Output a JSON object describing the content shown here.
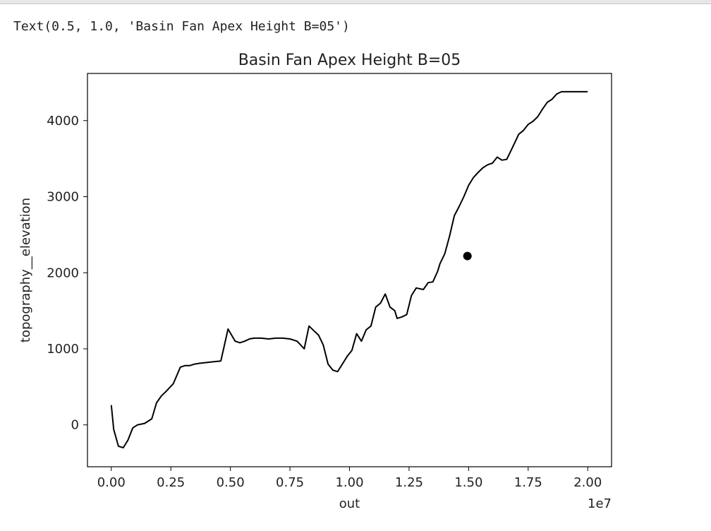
{
  "output_text": "Text(0.5, 1.0, 'Basin Fan Apex Height B=05')",
  "chart_data": {
    "type": "line",
    "title": "Basin Fan Apex Height B=05",
    "xlabel": "out",
    "ylabel": "topography__elevation",
    "x_offset_label": "1e7",
    "xlim": [
      -0.1,
      2.1
    ],
    "ylim": [
      -550,
      4620
    ],
    "x_ticks": [
      0.0,
      0.25,
      0.5,
      0.75,
      1.0,
      1.25,
      1.5,
      1.75,
      2.0
    ],
    "x_tick_labels": [
      "0.00",
      "0.25",
      "0.50",
      "0.75",
      "1.00",
      "1.25",
      "1.50",
      "1.75",
      "2.00"
    ],
    "y_ticks": [
      0,
      1000,
      2000,
      3000,
      4000
    ],
    "y_tick_labels": [
      "0",
      "1000",
      "2000",
      "3000",
      "4000"
    ],
    "grid": false,
    "line_color": "#000000",
    "series": [
      {
        "x": [
          0.0,
          0.01,
          0.03,
          0.05,
          0.07,
          0.09,
          0.11,
          0.14,
          0.17,
          0.19,
          0.21,
          0.23,
          0.26,
          0.29,
          0.31,
          0.33,
          0.35,
          0.37,
          0.4,
          0.43,
          0.46,
          0.49,
          0.52,
          0.54,
          0.56,
          0.58,
          0.6,
          0.63,
          0.66,
          0.69,
          0.72,
          0.75,
          0.78,
          0.81,
          0.83,
          0.85,
          0.87,
          0.89,
          0.91,
          0.93,
          0.95,
          0.97,
          0.99,
          1.01,
          1.03,
          1.05,
          1.07,
          1.09,
          1.11,
          1.13,
          1.15,
          1.17,
          1.19,
          1.2,
          1.22,
          1.24,
          1.26,
          1.28,
          1.31,
          1.33,
          1.35,
          1.37,
          1.38,
          1.4,
          1.42,
          1.44,
          1.46,
          1.48,
          1.5,
          1.52,
          1.54,
          1.56,
          1.58,
          1.6,
          1.62,
          1.64,
          1.66,
          1.68,
          1.7,
          1.71,
          1.73,
          1.75,
          1.77,
          1.79,
          1.81,
          1.83,
          1.85,
          1.87,
          1.89,
          1.91,
          1.93,
          1.95,
          1.97,
          1.99,
          2.0
        ],
        "y": [
          260,
          -60,
          -280,
          -300,
          -200,
          -40,
          0,
          20,
          80,
          290,
          380,
          440,
          540,
          760,
          780,
          780,
          800,
          810,
          820,
          830,
          840,
          1260,
          1100,
          1080,
          1100,
          1130,
          1140,
          1140,
          1130,
          1140,
          1140,
          1130,
          1100,
          1000,
          1300,
          1240,
          1180,
          1050,
          800,
          720,
          700,
          800,
          900,
          980,
          1200,
          1100,
          1250,
          1300,
          1550,
          1600,
          1720,
          1550,
          1500,
          1400,
          1420,
          1450,
          1700,
          1800,
          1780,
          1870,
          1880,
          2020,
          2120,
          2250,
          2480,
          2750,
          2870,
          3000,
          3150,
          3250,
          3320,
          3380,
          3420,
          3440,
          3520,
          3480,
          3490,
          3620,
          3750,
          3820,
          3870,
          3950,
          3990,
          4050,
          4150,
          4240,
          4280,
          4350,
          4380,
          4380,
          4380,
          4380,
          4380,
          4380,
          4380
        ]
      }
    ],
    "marker": {
      "x": 1.495,
      "y": 2220,
      "color": "#000000"
    }
  }
}
